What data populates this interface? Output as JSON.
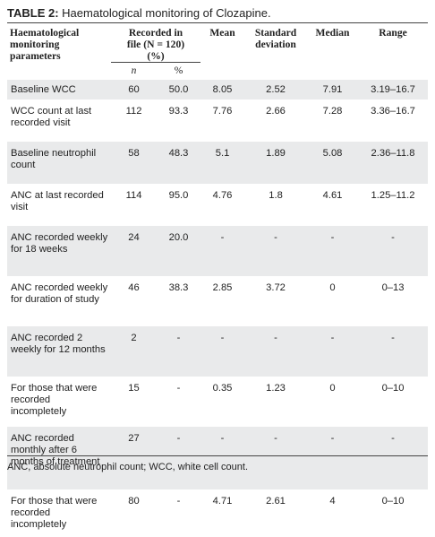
{
  "title": {
    "label": "TABLE 2:",
    "text": " Haematological monitoring of Clozapine."
  },
  "table": {
    "headers": {
      "param": "Haematological monitoring parameters",
      "recorded": "Recorded in file (N = 120) (%)",
      "mean": "Mean",
      "sd": "Standard deviation",
      "median": "Median",
      "range": "Range",
      "n": "n",
      "pct": "%"
    },
    "rows": [
      {
        "param": "Baseline WCC",
        "n": "60",
        "pct": "50.0",
        "mean": "8.05",
        "sd": "2.52",
        "median": "7.91",
        "range": "3.19–16.7"
      },
      {
        "param": "WCC count at last recorded visit",
        "n": "112",
        "pct": "93.3",
        "mean": "7.76",
        "sd": "2.66",
        "median": "7.28",
        "range": "3.36–16.7"
      },
      {
        "param": "Baseline neutrophil count",
        "n": "58",
        "pct": "48.3",
        "mean": "5.1",
        "sd": "1.89",
        "median": "5.08",
        "range": "2.36–11.8"
      },
      {
        "param": "ANC at last recorded visit",
        "n": "114",
        "pct": "95.0",
        "mean": "4.76",
        "sd": "1.8",
        "median": "4.61",
        "range": "1.25–11.2"
      },
      {
        "param": "ANC recorded weekly for 18 weeks",
        "n": "24",
        "pct": "20.0",
        "mean": "-",
        "sd": "-",
        "median": "-",
        "range": "-"
      },
      {
        "param": "ANC recorded weekly for duration of study",
        "n": "46",
        "pct": "38.3",
        "mean": "2.85",
        "sd": "3.72",
        "median": "0",
        "range": "0–13"
      },
      {
        "param": "ANC recorded 2 weekly for 12 months",
        "n": "2",
        "pct": "-",
        "mean": "-",
        "sd": "-",
        "median": "-",
        "range": "-"
      },
      {
        "param": "For those that were recorded incompletely",
        "n": "15",
        "pct": "-",
        "mean": "0.35",
        "sd": "1.23",
        "median": "0",
        "range": "0–10"
      },
      {
        "param": "ANC recorded monthly after 6 months of treatment",
        "n": "27",
        "pct": "-",
        "mean": "-",
        "sd": "-",
        "median": "-",
        "range": "-"
      },
      {
        "param": "For those that were recorded incompletely",
        "n": "80",
        "pct": "-",
        "mean": "4.71",
        "sd": "2.61",
        "median": "4",
        "range": "0–10"
      }
    ]
  },
  "footnote": "ANC, absolute neutrophil count; WCC, white cell count."
}
